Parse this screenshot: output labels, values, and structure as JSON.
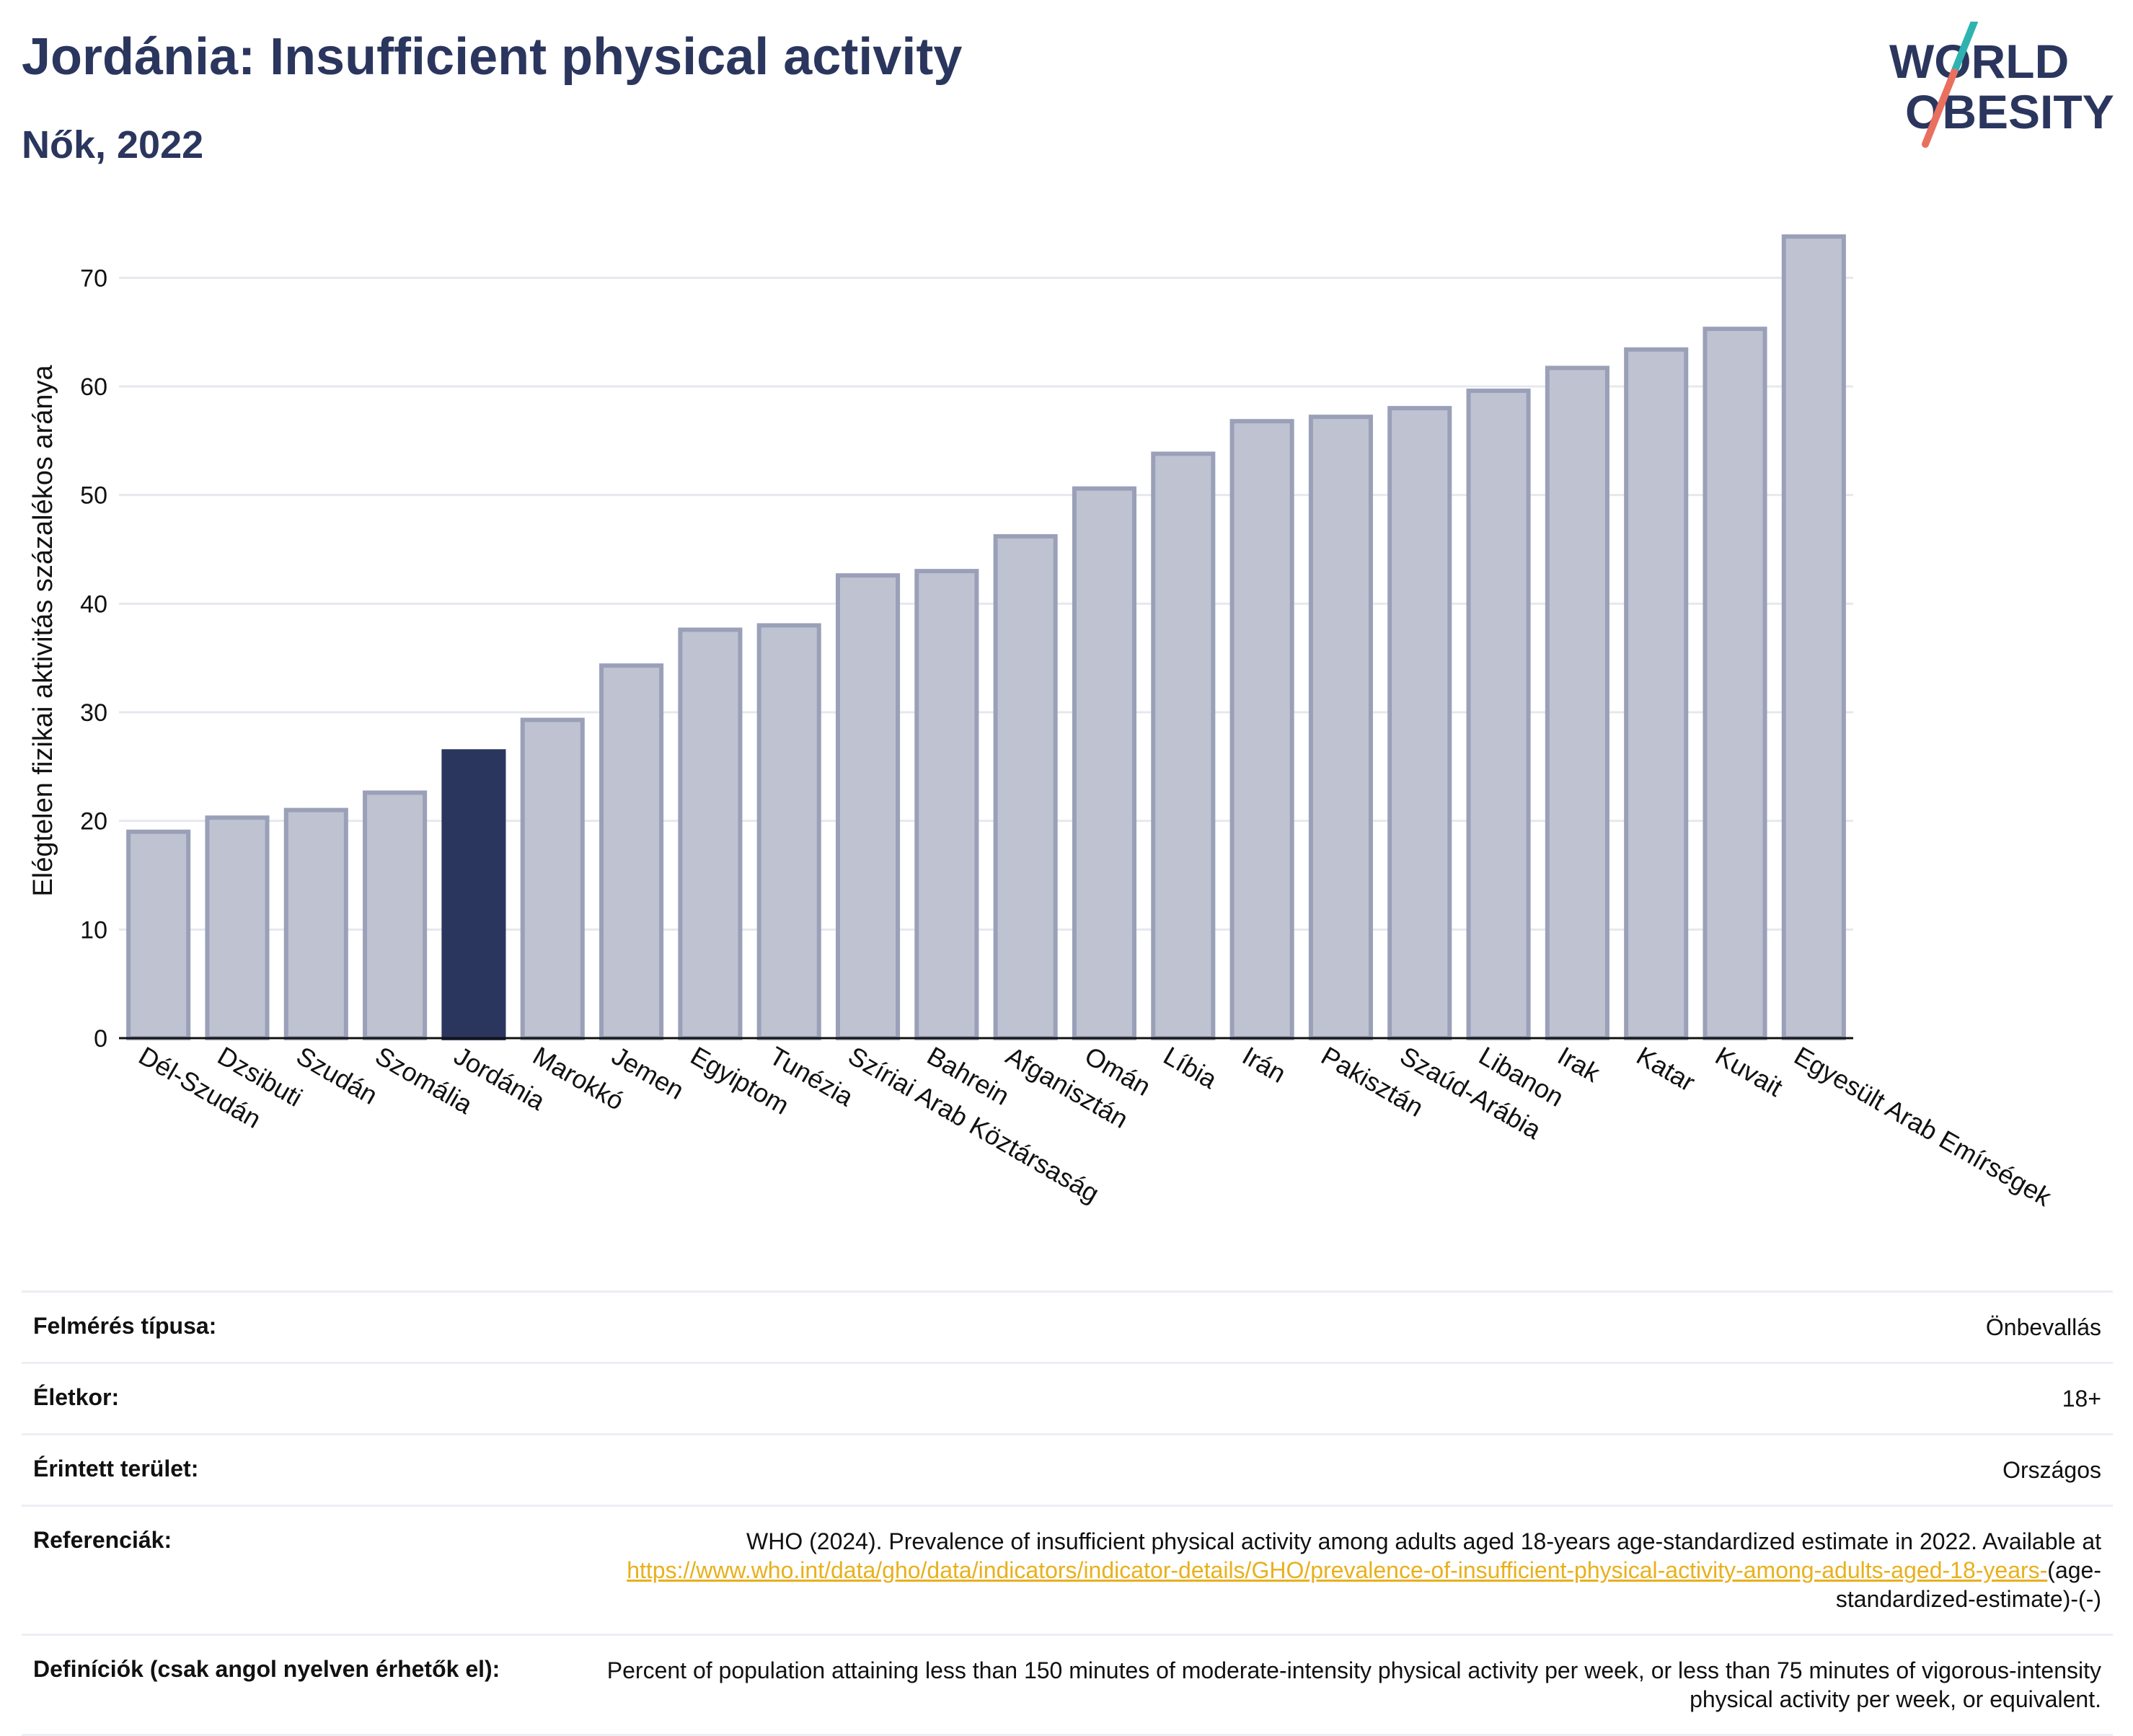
{
  "header": {
    "title": "Jordánia: Insufficient physical activity",
    "subtitle": "Nők, 2022"
  },
  "logo": {
    "line1": "WORLD",
    "line2": "OBESITY"
  },
  "colors": {
    "title": "#2b365e",
    "bar": "#bfc3d1",
    "bar_stroke": "#9aa0b8",
    "highlight": "#2b365e",
    "link": "#e8b01d",
    "logo_teal": "#2fb3b0",
    "logo_coral": "#e9705f"
  },
  "chart_data": {
    "type": "bar",
    "title": "Jordánia: Insufficient physical activity",
    "subtitle": "Nők, 2022",
    "ylabel": "Elégtelen fizikai aktivitás százalékos aránya",
    "xlabel": "",
    "ylim": [
      0,
      75
    ],
    "yticks": [
      0,
      10,
      20,
      30,
      40,
      50,
      60,
      70
    ],
    "grid": true,
    "highlight": "Jordánia",
    "categories": [
      "Dél-Szudán",
      "Dzsibuti",
      "Szudán",
      "Szomália",
      "Jordánia",
      "Marokkó",
      "Jemen",
      "Egyiptom",
      "Tunézia",
      "Szíriai Arab Köztársaság",
      "Bahrein",
      "Afganisztán",
      "Omán",
      "Líbia",
      "Irán",
      "Pakisztán",
      "Szaúd-Arábia",
      "Libanon",
      "Irak",
      "Katar",
      "Kuvait",
      "Egyesült Arab Emírségek"
    ],
    "values": [
      19.0,
      20.3,
      21.0,
      22.6,
      26.4,
      29.3,
      34.3,
      37.6,
      38.0,
      42.6,
      43.0,
      46.2,
      50.6,
      53.8,
      56.8,
      57.2,
      58.0,
      59.6,
      61.7,
      63.4,
      65.3,
      73.8
    ]
  },
  "info": {
    "rows": [
      {
        "label": "Felmérés típusa:",
        "value": "Önbevallás"
      },
      {
        "label": "Életkor:",
        "value": "18+"
      },
      {
        "label": "Érintett terület:",
        "value": "Országos"
      }
    ],
    "references": {
      "label": "Referenciák:",
      "text": "WHO (2024). Prevalence of insufficient physical activity among adults aged 18-years age-standardized estimate in 2022. Available at",
      "link": "https://www.who.int/data/gho/data/indicators/indicator-details/GHO/prevalence-of-insufficient-physical-activity-among-adults-aged-18-years-",
      "suffix": "(age-standardized-estimate)-(-)"
    },
    "definitions": {
      "label": "Definíciók (csak angol nyelven érhetők el):",
      "value": "Percent of population attaining less than 150 minutes of moderate-intensity physical activity per week, or less than 75 minutes of vigorous-intensity physical activity per week, or equivalent."
    }
  }
}
